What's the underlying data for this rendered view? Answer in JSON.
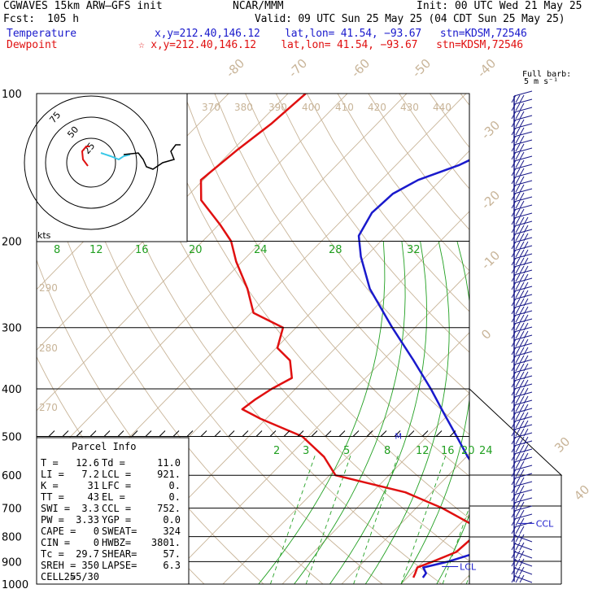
{
  "header": {
    "model_line": "CGWAVES 15km ARW–GFS init",
    "forecast_label": "Fcst:",
    "forecast_hours": "105 h",
    "center": "NCAR/MMM",
    "init_time": "Init: 00 UTC Wed 21 May 25",
    "valid_time": "Valid: 09 UTC Sun 25 May 25 (04 CDT Sun 25 May 25)",
    "temperature_label": "Temperature",
    "dewpoint_label": "Dewpoint",
    "temp_location": "x,y=212.40,146.12    lat,lon= 41.54, −93.67   stn=KDSM,72546",
    "dew_location": "☆ x,y=212.40,146.12    lat,lon= 41.54, −93.67   stn=KDSM,72546",
    "barb_legend_1": "Full barb:",
    "barb_legend_2": "5 m s⁻¹"
  },
  "colors": {
    "temperature": "#1a1acc",
    "dewpoint": "#e01010",
    "isotherm": "#c8b498",
    "mixing_ratio": "#22a022",
    "hodograph_low": "#38c8e8",
    "wind_barb": "#1a1a8a"
  },
  "hodograph": {
    "rings": [
      "75",
      "50",
      "25"
    ],
    "units": "kts"
  },
  "parcel_info": {
    "title": "Parcel Info",
    "rows": [
      [
        "T   =",
        "12.6",
        "Td =",
        "11.0"
      ],
      [
        "LI  =",
        "7.2",
        "LCL =",
        "921."
      ],
      [
        "K   =",
        "31",
        "LFC =",
        "0."
      ],
      [
        "TT  =",
        "43",
        "EL  =",
        "0."
      ],
      [
        "SWI =",
        "3.3",
        "CCL =",
        "752."
      ],
      [
        "PW  =",
        "3.33",
        "YGP =",
        "0.0"
      ],
      [
        "CAPE =",
        "0",
        "SWEAT=",
        "324"
      ],
      [
        "CIN  =",
        "0",
        "HWBZ=",
        "3801."
      ],
      [
        "Tc  =",
        "29.7",
        "SHEAR=",
        "57."
      ],
      [
        "SREH =",
        "350",
        "LAPSE=",
        "6.3"
      ],
      [
        "CELL =",
        "255/30",
        "",
        ""
      ]
    ]
  },
  "chart_data": {
    "type": "line",
    "title": "",
    "xlabel": "",
    "ylabel": "",
    "y_scale": "log pressure (reversed)",
    "ylim": [
      1000,
      100
    ],
    "pressure_ticks": [
      "100",
      "200",
      "300",
      "400",
      "500",
      "600",
      "700",
      "800",
      "900",
      "1000"
    ],
    "isotherm_labels": [
      "-80",
      "-70",
      "-60",
      "-50",
      "-40",
      "-30",
      "-20",
      "-10",
      "0",
      "30",
      "40"
    ],
    "theta_labels_top": [
      "370",
      "380",
      "390",
      "400",
      "410",
      "420",
      "430",
      "440"
    ],
    "theta_labels_left": [
      "290",
      "280",
      "270"
    ],
    "theta_e_labels": [
      "8",
      "12",
      "16",
      "20",
      "24",
      "28",
      "32"
    ],
    "mixing_ratio_labels": [
      "2",
      "3",
      "5",
      "8",
      "12",
      "16",
      "20",
      "24"
    ],
    "levels": [
      {
        "name": "CCL",
        "p": 752
      },
      {
        "name": "LCL",
        "p": 921
      },
      {
        "name": "M",
        "p": 500
      }
    ],
    "series": [
      {
        "name": "Temperature",
        "points": [
          [
            970,
            12.6
          ],
          [
            950,
            12.4
          ],
          [
            925,
            11.0
          ],
          [
            900,
            14.2
          ],
          [
            860,
            17.8
          ],
          [
            800,
            18.6
          ],
          [
            752,
            17.2
          ],
          [
            700,
            13.4
          ],
          [
            650,
            9.6
          ],
          [
            600,
            5.4
          ],
          [
            550,
            0.2
          ],
          [
            500,
            -5.0
          ],
          [
            450,
            -10.8
          ],
          [
            400,
            -17.2
          ],
          [
            350,
            -24.8
          ],
          [
            300,
            -33.8
          ],
          [
            250,
            -44.0
          ],
          [
            215,
            -50.8
          ],
          [
            195,
            -54.6
          ],
          [
            175,
            -56.2
          ],
          [
            160,
            -55.8
          ],
          [
            150,
            -53.8
          ],
          [
            140,
            -49.4
          ],
          [
            125,
            -44.8
          ],
          [
            115,
            -42.0
          ],
          [
            100,
            -40.2
          ]
        ]
      },
      {
        "name": "Dewpoint",
        "points": [
          [
            970,
            11.0
          ],
          [
            950,
            10.6
          ],
          [
            925,
            10.0
          ],
          [
            900,
            11.6
          ],
          [
            860,
            14.0
          ],
          [
            800,
            14.4
          ],
          [
            752,
            11.6
          ],
          [
            700,
            4.4
          ],
          [
            650,
            -4.4
          ],
          [
            600,
            -19.0
          ],
          [
            550,
            -24.0
          ],
          [
            500,
            -31.0
          ],
          [
            460,
            -41.0
          ],
          [
            440,
            -45.6
          ],
          [
            420,
            -45.0
          ],
          [
            400,
            -44.0
          ],
          [
            380,
            -42.4
          ],
          [
            350,
            -45.6
          ],
          [
            330,
            -49.8
          ],
          [
            300,
            -52.2
          ],
          [
            280,
            -59.6
          ],
          [
            250,
            -64.6
          ],
          [
            220,
            -71.0
          ],
          [
            200,
            -75.2
          ],
          [
            185,
            -79.8
          ],
          [
            165,
            -87.0
          ],
          [
            150,
            -90.4
          ],
          [
            130,
            -89.2
          ],
          [
            115,
            -87.8
          ],
          [
            100,
            -87.0
          ]
        ]
      }
    ]
  }
}
